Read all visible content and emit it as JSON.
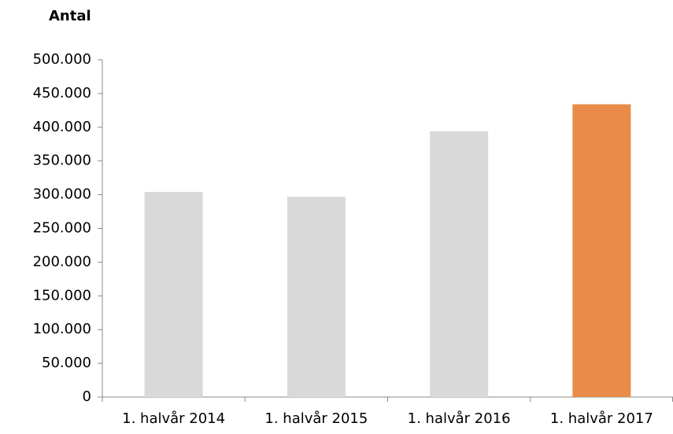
{
  "chart_data": {
    "type": "bar",
    "title": "Antal",
    "categories": [
      "1. halvår 2014",
      "1. halvår 2015",
      "1. halvår 2016",
      "1. halvår 2017"
    ],
    "values": [
      304000,
      297000,
      394000,
      434000
    ],
    "colors": [
      "#d9d9d9",
      "#d9d9d9",
      "#d9d9d9",
      "#e98c4a"
    ],
    "ylim": [
      0,
      500000
    ],
    "yticks": [
      0,
      {
        "value": 50000,
        "label": "50.000"
      },
      {
        "value": 100000,
        "label": "100.000"
      },
      {
        "value": 150000,
        "label": "150.000"
      },
      {
        "value": 200000,
        "label": "200.000"
      },
      {
        "value": 250000,
        "label": "250.000"
      },
      {
        "value": 300000,
        "label": "300.000"
      },
      {
        "value": 350000,
        "label": "350.000"
      },
      {
        "value": 400000,
        "label": "400.000"
      },
      {
        "value": 450000,
        "label": "450.000"
      },
      {
        "value": 500000,
        "label": "500.000"
      }
    ],
    "grid": false
  }
}
